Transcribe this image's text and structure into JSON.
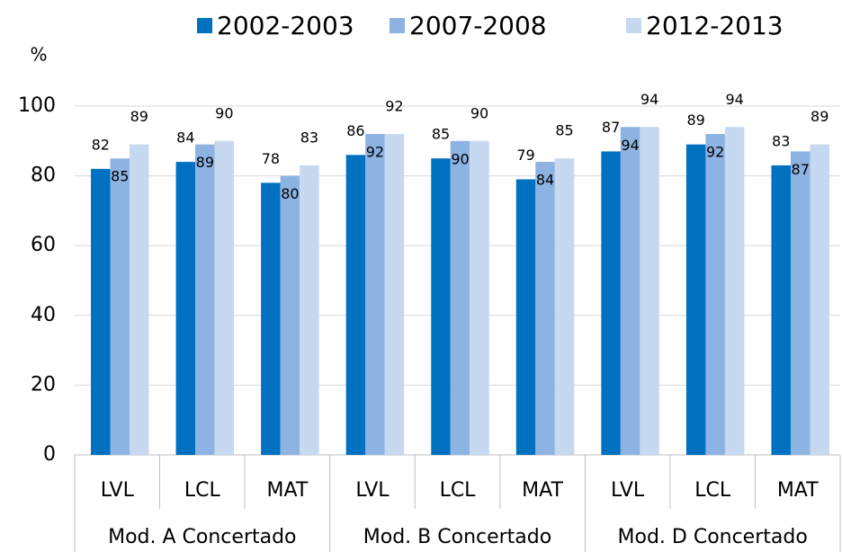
{
  "chart_data": {
    "type": "bar",
    "y_label": "%",
    "categories": [
      "LVL",
      "LCL",
      "MAT",
      "LVL",
      "LCL",
      "MAT",
      "LVL",
      "LCL",
      "MAT"
    ],
    "groups": [
      "Mod. A Concertado",
      "Mod. B Concertado",
      "Mod. D Concertado"
    ],
    "series": [
      {
        "name": "2002-2003",
        "color": "#0070c0",
        "values": [
          82,
          84,
          78,
          86,
          85,
          79,
          87,
          89,
          83
        ]
      },
      {
        "name": "2007-2008",
        "color": "#8db3e2",
        "values": [
          85,
          89,
          80,
          92,
          90,
          84,
          94,
          92,
          87
        ]
      },
      {
        "name": "2012-2013",
        "color": "#c6d9f1",
        "values": [
          89,
          90,
          83,
          92,
          90,
          85,
          94,
          94,
          89
        ]
      }
    ],
    "ylim": [
      0,
      100
    ],
    "yticks": [
      0,
      20,
      40,
      60,
      80,
      100
    ],
    "grid": true,
    "legend": "top"
  }
}
